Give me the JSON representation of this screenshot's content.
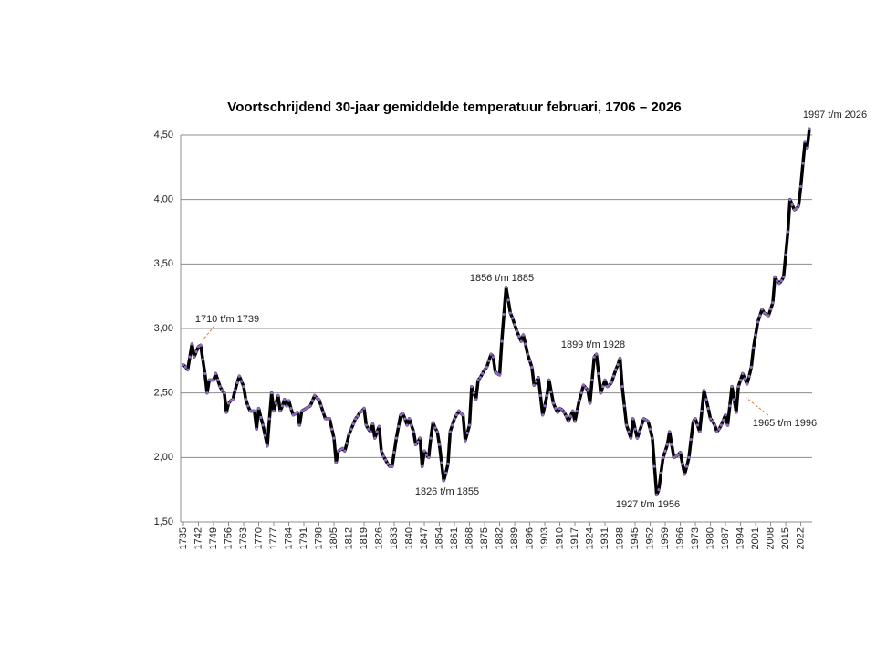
{
  "chart_data": {
    "type": "line",
    "title": "Voortschrijdend 30-jaar gemiddelde temperatuur februari, 1706  –  2026",
    "x": [
      1735,
      1736,
      1737,
      1738,
      1739,
      1740,
      1741,
      1742,
      1743,
      1744,
      1745,
      1746,
      1747,
      1748,
      1749,
      1750,
      1751,
      1752,
      1753,
      1754,
      1755,
      1756,
      1757,
      1758,
      1759,
      1760,
      1761,
      1762,
      1763,
      1764,
      1765,
      1766,
      1767,
      1768,
      1769,
      1770,
      1771,
      1772,
      1773,
      1774,
      1775,
      1776,
      1777,
      1778,
      1779,
      1780,
      1781,
      1782,
      1783,
      1784,
      1785,
      1786,
      1787,
      1788,
      1789,
      1790,
      1791,
      1792,
      1793,
      1794,
      1795,
      1796,
      1797,
      1798,
      1799,
      1800,
      1801,
      1802,
      1803,
      1804,
      1805,
      1806,
      1807,
      1808,
      1809,
      1810,
      1811,
      1812,
      1813,
      1814,
      1815,
      1816,
      1817,
      1818,
      1819,
      1820,
      1821,
      1822,
      1823,
      1824,
      1825,
      1826,
      1827,
      1828,
      1829,
      1830,
      1831,
      1832,
      1833,
      1834,
      1835,
      1836,
      1837,
      1838,
      1839,
      1840,
      1841,
      1842,
      1843,
      1844,
      1845,
      1846,
      1847,
      1848,
      1849,
      1850,
      1851,
      1852,
      1853,
      1854,
      1855,
      1856,
      1857,
      1858,
      1859,
      1860,
      1861,
      1862,
      1863,
      1864,
      1865,
      1866,
      1867,
      1868,
      1869,
      1870,
      1871,
      1872,
      1873,
      1874,
      1875,
      1876,
      1877,
      1878,
      1879,
      1880,
      1881,
      1882,
      1883,
      1884,
      1885,
      1886,
      1887,
      1888,
      1889,
      1890,
      1891,
      1892,
      1893,
      1894,
      1895,
      1896,
      1897,
      1898,
      1899,
      1900,
      1901,
      1902,
      1903,
      1904,
      1905,
      1906,
      1907,
      1908,
      1909,
      1910,
      1911,
      1912,
      1913,
      1914,
      1915,
      1916,
      1917,
      1918,
      1919,
      1920,
      1921,
      1922,
      1923,
      1924,
      1925,
      1926,
      1927,
      1928,
      1929,
      1930,
      1931,
      1932,
      1933,
      1934,
      1935,
      1936,
      1937,
      1938,
      1939,
      1940,
      1941,
      1942,
      1943,
      1944,
      1945,
      1946,
      1947,
      1948,
      1949,
      1950,
      1951,
      1952,
      1953,
      1954,
      1955,
      1956,
      1957,
      1958,
      1959,
      1960,
      1961,
      1962,
      1963,
      1964,
      1965,
      1966,
      1967,
      1968,
      1969,
      1970,
      1971,
      1972,
      1973,
      1974,
      1975,
      1976,
      1977,
      1978,
      1979,
      1980,
      1981,
      1982,
      1983,
      1984,
      1985,
      1986,
      1987,
      1988,
      1989,
      1990,
      1991,
      1992,
      1993,
      1994,
      1995,
      1996,
      1997,
      1998,
      1999,
      2000,
      2001,
      2002,
      2003,
      2004,
      2005,
      2006,
      2007,
      2008,
      2009,
      2010,
      2011,
      2012,
      2013,
      2014,
      2015,
      2016,
      2017,
      2018,
      2019,
      2020,
      2021,
      2022,
      2023,
      2024,
      2025,
      2026
    ],
    "values": [
      2.72,
      2.7,
      2.68,
      2.78,
      2.88,
      2.78,
      2.82,
      2.86,
      2.87,
      2.76,
      2.65,
      2.5,
      2.6,
      2.6,
      2.6,
      2.65,
      2.6,
      2.55,
      2.52,
      2.5,
      2.35,
      2.42,
      2.44,
      2.45,
      2.52,
      2.58,
      2.63,
      2.59,
      2.55,
      2.45,
      2.4,
      2.36,
      2.36,
      2.36,
      2.22,
      2.38,
      2.31,
      2.25,
      2.17,
      2.09,
      2.3,
      2.5,
      2.36,
      2.42,
      2.48,
      2.36,
      2.4,
      2.45,
      2.4,
      2.44,
      2.38,
      2.33,
      2.34,
      2.35,
      2.25,
      2.36,
      2.37,
      2.38,
      2.39,
      2.4,
      2.44,
      2.48,
      2.46,
      2.45,
      2.4,
      2.35,
      2.3,
      2.3,
      2.3,
      2.22,
      2.15,
      1.96,
      2.05,
      2.06,
      2.07,
      2.05,
      2.11,
      2.18,
      2.22,
      2.26,
      2.3,
      2.32,
      2.35,
      2.36,
      2.38,
      2.25,
      2.22,
      2.2,
      2.26,
      2.15,
      2.2,
      2.24,
      2.05,
      2.01,
      1.98,
      1.95,
      1.93,
      1.93,
      2.04,
      2.15,
      2.24,
      2.33,
      2.34,
      2.3,
      2.25,
      2.3,
      2.25,
      2.2,
      2.1,
      2.12,
      2.15,
      1.93,
      2.05,
      2.02,
      2.0,
      2.15,
      2.27,
      2.23,
      2.2,
      2.1,
      1.96,
      1.82,
      1.88,
      1.95,
      2.2,
      2.25,
      2.3,
      2.33,
      2.36,
      2.34,
      2.33,
      2.13,
      2.19,
      2.25,
      2.55,
      2.5,
      2.45,
      2.6,
      2.62,
      2.65,
      2.68,
      2.7,
      2.75,
      2.8,
      2.78,
      2.66,
      2.65,
      2.64,
      2.9,
      3.11,
      3.32,
      3.22,
      3.12,
      3.08,
      3.03,
      2.98,
      2.94,
      2.9,
      2.95,
      2.88,
      2.8,
      2.75,
      2.7,
      2.56,
      2.59,
      2.62,
      2.48,
      2.33,
      2.4,
      2.48,
      2.6,
      2.51,
      2.42,
      2.38,
      2.35,
      2.38,
      2.37,
      2.35,
      2.32,
      2.28,
      2.32,
      2.36,
      2.28,
      2.36,
      2.44,
      2.5,
      2.56,
      2.54,
      2.52,
      2.42,
      2.6,
      2.78,
      2.8,
      2.65,
      2.5,
      2.55,
      2.6,
      2.55,
      2.56,
      2.58,
      2.63,
      2.68,
      2.72,
      2.77,
      2.55,
      2.4,
      2.25,
      2.2,
      2.15,
      2.3,
      2.22,
      2.15,
      2.2,
      2.25,
      2.3,
      2.29,
      2.28,
      2.22,
      2.15,
      1.93,
      1.71,
      1.75,
      1.88,
      2.0,
      2.05,
      2.1,
      2.2,
      2.1,
      2.0,
      2.01,
      2.02,
      2.04,
      1.95,
      1.87,
      1.93,
      2.0,
      2.14,
      2.28,
      2.3,
      2.25,
      2.2,
      2.36,
      2.52,
      2.45,
      2.38,
      2.3,
      2.28,
      2.25,
      2.2,
      2.22,
      2.25,
      2.29,
      2.33,
      2.25,
      2.4,
      2.55,
      2.45,
      2.35,
      2.55,
      2.6,
      2.65,
      2.61,
      2.57,
      2.63,
      2.7,
      2.85,
      2.95,
      3.05,
      3.1,
      3.15,
      3.12,
      3.11,
      3.1,
      3.15,
      3.2,
      3.4,
      3.37,
      3.35,
      3.37,
      3.4,
      3.57,
      3.75,
      4.0,
      3.96,
      3.92,
      3.93,
      3.95,
      4.1,
      4.28,
      4.45,
      4.4,
      4.55
    ],
    "color": "#000000",
    "marker_color": "#8e6bbf",
    "xlim": [
      1735,
      2026
    ],
    "xticks": [
      1735,
      1742,
      1749,
      1756,
      1763,
      1770,
      1777,
      1784,
      1791,
      1798,
      1805,
      1812,
      1819,
      1826,
      1833,
      1840,
      1847,
      1854,
      1861,
      1868,
      1875,
      1882,
      1889,
      1896,
      1903,
      1910,
      1917,
      1924,
      1931,
      1938,
      1945,
      1952,
      1959,
      1966,
      1973,
      1980,
      1987,
      1994,
      2001,
      2008,
      2015,
      2022
    ],
    "ylim": [
      1.5,
      4.5
    ],
    "yticks": [
      {
        "value": 1.5,
        "label": "1,50"
      },
      {
        "value": 2.0,
        "label": "2,00"
      },
      {
        "value": 2.5,
        "label": "2,50"
      },
      {
        "value": 3.0,
        "label": "3,00"
      },
      {
        "value": 3.5,
        "label": "3,50"
      },
      {
        "value": 4.0,
        "label": "4,00"
      },
      {
        "value": 4.5,
        "label": "4,50"
      }
    ],
    "grid": true,
    "annotations": [
      "1997 t/m 2026",
      "1710 t/m 1739",
      "1856 t/m 1885",
      "1899 t/m 1928",
      "1826 t/m 1855",
      "1927 t/m 1956",
      "1965 t/m 1996"
    ]
  }
}
